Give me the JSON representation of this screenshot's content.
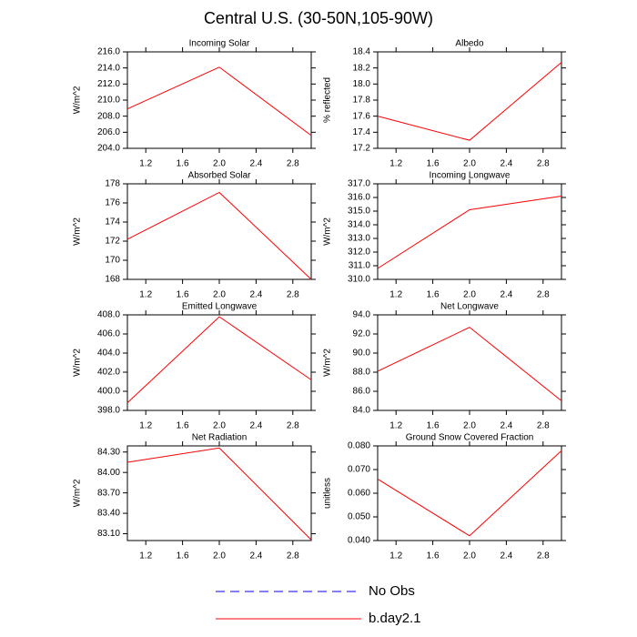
{
  "title": "Central U.S. (30-50N,105-90W)",
  "legend": [
    {
      "name": "No Obs",
      "color": "#0000ff",
      "dash": true
    },
    {
      "name": "b.day2.1",
      "color": "#ff0000",
      "dash": false
    }
  ],
  "chart_data": [
    {
      "type": "line",
      "title": "Incoming Solar",
      "ylabel": "W/m^2",
      "x": [
        1,
        2,
        3
      ],
      "values": [
        208.9,
        214.1,
        205.6
      ],
      "color": "#ff0000",
      "xlim": [
        1,
        3
      ],
      "xticks": [
        1.2,
        1.6,
        {
          "value": 2,
          "label": "2.0"
        },
        2.4,
        2.8
      ],
      "ylim": [
        204,
        216
      ],
      "yticks": [
        {
          "value": 204,
          "label": "204.0"
        },
        {
          "value": 206,
          "label": "206.0"
        },
        {
          "value": 208,
          "label": "208.0"
        },
        {
          "value": 210,
          "label": "210.0"
        },
        {
          "value": 212,
          "label": "212.0"
        },
        {
          "value": 214,
          "label": "214.0"
        },
        {
          "value": 216,
          "label": "216.0"
        }
      ]
    },
    {
      "type": "line",
      "title": "Albedo",
      "ylabel": "% reflected",
      "x": [
        1,
        2,
        3
      ],
      "values": [
        17.6,
        17.3,
        18.27
      ],
      "color": "#ff0000",
      "xlim": [
        1,
        3
      ],
      "xticks": [
        1.2,
        1.6,
        {
          "value": 2,
          "label": "2.0"
        },
        2.4,
        2.8
      ],
      "ylim": [
        17.2,
        18.4
      ],
      "yticks": [
        17.2,
        17.4,
        17.6,
        17.8,
        {
          "value": 18,
          "label": "18.0"
        },
        18.2,
        18.4
      ]
    },
    {
      "type": "line",
      "title": "Absorbed Solar",
      "ylabel": "W/m^2",
      "x": [
        1,
        2,
        3
      ],
      "values": [
        172.2,
        177.1,
        168.0
      ],
      "color": "#ff0000",
      "xlim": [
        1,
        3
      ],
      "xticks": [
        1.2,
        1.6,
        {
          "value": 2,
          "label": "2.0"
        },
        2.4,
        2.8
      ],
      "ylim": [
        168,
        178
      ],
      "yticks": [
        168,
        170,
        172,
        174,
        176,
        178
      ]
    },
    {
      "type": "line",
      "title": "Incoming Longwave",
      "ylabel": "W/m^2",
      "x": [
        1,
        2,
        3
      ],
      "values": [
        310.8,
        315.1,
        316.1
      ],
      "color": "#ff0000",
      "xlim": [
        1,
        3
      ],
      "xticks": [
        1.2,
        1.6,
        {
          "value": 2,
          "label": "2.0"
        },
        2.4,
        2.8
      ],
      "ylim": [
        310,
        317
      ],
      "yticks": [
        {
          "value": 310,
          "label": "310.0"
        },
        {
          "value": 311,
          "label": "311.0"
        },
        {
          "value": 312,
          "label": "312.0"
        },
        {
          "value": 313,
          "label": "313.0"
        },
        {
          "value": 314,
          "label": "314.0"
        },
        {
          "value": 315,
          "label": "315.0"
        },
        {
          "value": 316,
          "label": "316.0"
        },
        {
          "value": 317,
          "label": "317.0"
        }
      ]
    },
    {
      "type": "line",
      "title": "Emitted Longwave",
      "ylabel": "W/m^2",
      "x": [
        1,
        2,
        3
      ],
      "values": [
        398.8,
        407.8,
        401.2
      ],
      "color": "#ff0000",
      "xlim": [
        1,
        3
      ],
      "xticks": [
        1.2,
        1.6,
        {
          "value": 2,
          "label": "2.0"
        },
        2.4,
        2.8
      ],
      "ylim": [
        398,
        408
      ],
      "yticks": [
        {
          "value": 398,
          "label": "398.0"
        },
        {
          "value": 400,
          "label": "400.0"
        },
        {
          "value": 402,
          "label": "402.0"
        },
        {
          "value": 404,
          "label": "404.0"
        },
        {
          "value": 406,
          "label": "406.0"
        },
        {
          "value": 408,
          "label": "408.0"
        }
      ]
    },
    {
      "type": "line",
      "title": "Net Longwave",
      "ylabel": "W/m^2",
      "x": [
        1,
        2,
        3
      ],
      "values": [
        88.1,
        92.7,
        85.0
      ],
      "color": "#ff0000",
      "xlim": [
        1,
        3
      ],
      "xticks": [
        1.2,
        1.6,
        {
          "value": 2,
          "label": "2.0"
        },
        2.4,
        2.8
      ],
      "ylim": [
        84,
        94
      ],
      "yticks": [
        {
          "value": 84,
          "label": "84.0"
        },
        {
          "value": 86,
          "label": "86.0"
        },
        {
          "value": 88,
          "label": "88.0"
        },
        {
          "value": 90,
          "label": "90.0"
        },
        {
          "value": 92,
          "label": "92.0"
        },
        {
          "value": 94,
          "label": "94.0"
        }
      ]
    },
    {
      "type": "line",
      "title": "Net Radiation",
      "ylabel": "W/m^2",
      "x": [
        1,
        2,
        3
      ],
      "values": [
        84.15,
        84.36,
        83.01
      ],
      "color": "#ff0000",
      "xlim": [
        1,
        3
      ],
      "xticks": [
        1.2,
        1.6,
        {
          "value": 2,
          "label": "2.0"
        },
        2.4,
        2.8
      ],
      "ylim": [
        83.0,
        84.39
      ],
      "yticks": [
        {
          "value": 83.1,
          "label": "83.10"
        },
        {
          "value": 83.4,
          "label": "83.40"
        },
        {
          "value": 83.7,
          "label": "83.70"
        },
        {
          "value": 84,
          "label": "84.00"
        },
        {
          "value": 84.3,
          "label": "84.30"
        }
      ]
    },
    {
      "type": "line",
      "title": "Ground Snow Covered Fraction",
      "ylabel": "unitless",
      "x": [
        1,
        2,
        3
      ],
      "values": [
        0.066,
        0.042,
        0.078
      ],
      "color": "#ff0000",
      "xlim": [
        1,
        3
      ],
      "xticks": [
        1.2,
        1.6,
        {
          "value": 2,
          "label": "2.0"
        },
        2.4,
        2.8
      ],
      "ylim": [
        0.04,
        0.08
      ],
      "yticks": [
        {
          "value": 0.04,
          "label": "0.040"
        },
        {
          "value": 0.05,
          "label": "0.050"
        },
        {
          "value": 0.06,
          "label": "0.060"
        },
        {
          "value": 0.07,
          "label": "0.070"
        },
        {
          "value": 0.08,
          "label": "0.080"
        }
      ]
    }
  ]
}
